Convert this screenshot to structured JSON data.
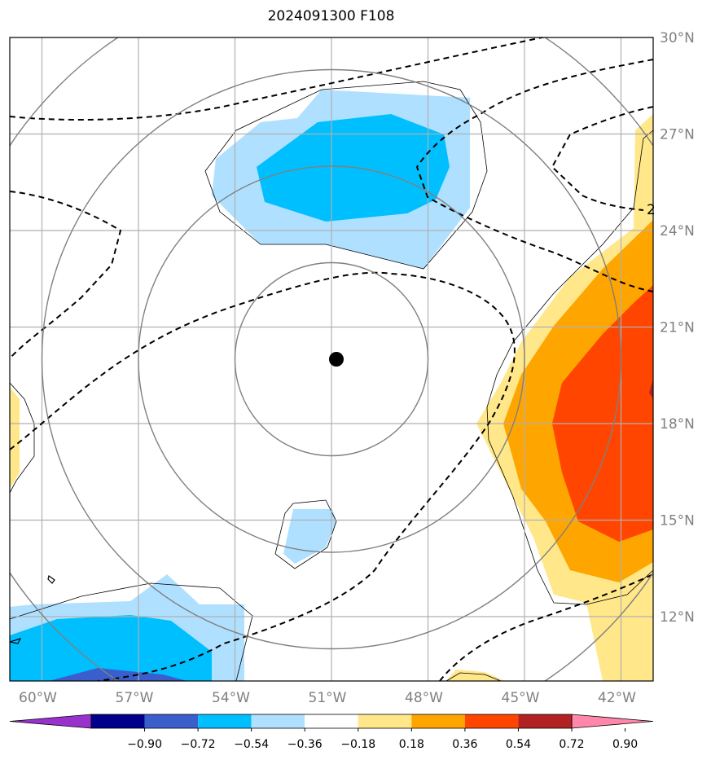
{
  "title": "2024091300 F108",
  "map": {
    "lon_range": [
      -61,
      -41
    ],
    "lat_range": [
      10,
      30
    ],
    "lon_ticks": [
      {
        "value": -60,
        "label": "60°W"
      },
      {
        "value": -57,
        "label": "57°W"
      },
      {
        "value": -54,
        "label": "54°W"
      },
      {
        "value": -51,
        "label": "51°W"
      },
      {
        "value": -48,
        "label": "48°W"
      },
      {
        "value": -45,
        "label": "45°W"
      },
      {
        "value": -42,
        "label": "42°W"
      }
    ],
    "lat_ticks": [
      {
        "value": 12,
        "label": "12°N"
      },
      {
        "value": 15,
        "label": "15°N"
      },
      {
        "value": 18,
        "label": "18°N"
      },
      {
        "value": 21,
        "label": "21°N"
      },
      {
        "value": 24,
        "label": "24°N"
      },
      {
        "value": 27,
        "label": "27°N"
      },
      {
        "value": 30,
        "label": "30°N"
      }
    ],
    "center": {
      "lon": -51,
      "lat": 20
    },
    "range_rings_deg": [
      3,
      6,
      9,
      12
    ],
    "contour_label": "2",
    "grid": true,
    "colors": {
      "grid": "#b0b0b0",
      "ring": "#808080",
      "tick_label": "#808080"
    }
  },
  "colorbar": {
    "labels": [
      "−0.90",
      "−0.72",
      "−0.54",
      "−0.36",
      "−0.18",
      "0.18",
      "0.36",
      "0.54",
      "0.72",
      "0.90"
    ],
    "colors": [
      "#9932cc",
      "#00008b",
      "#3a5fcd",
      "#00bfff",
      "#b0e0ff",
      "#ffffff",
      "#ffe78a",
      "#ffa500",
      "#ff4500",
      "#b22222",
      "#ff88aa"
    ]
  }
}
